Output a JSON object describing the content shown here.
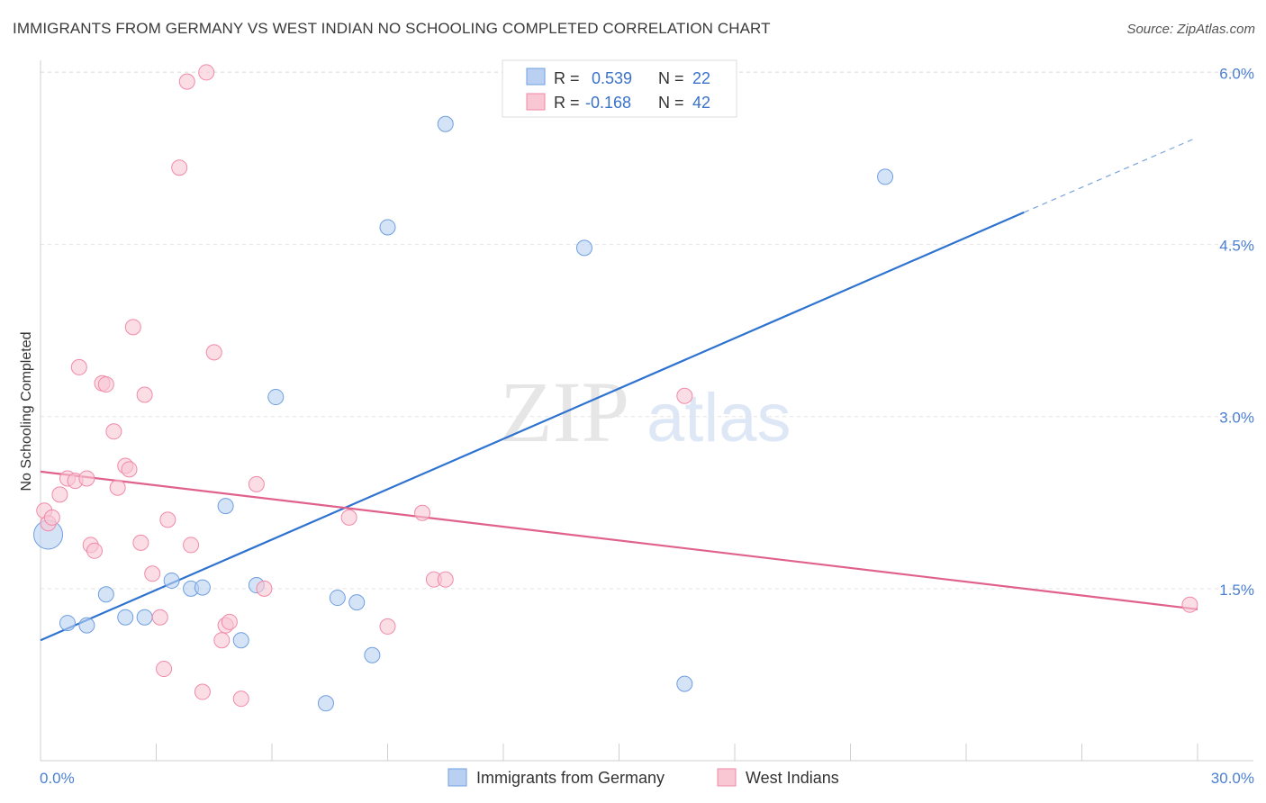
{
  "title": "IMMIGRANTS FROM GERMANY VS WEST INDIAN NO SCHOOLING COMPLETED CORRELATION CHART",
  "source": "Source: ZipAtlas.com",
  "watermark": {
    "zip": "ZIP",
    "atlas": "atlas"
  },
  "legend_top": {
    "rows": [
      {
        "r_label": "R =",
        "r_value": "0.539",
        "n_label": "N =",
        "n_value": "22"
      },
      {
        "r_label": "R =",
        "r_value": "-0.168",
        "n_label": "N =",
        "n_value": "42"
      }
    ]
  },
  "chart_data": {
    "type": "scatter",
    "title": "IMMIGRANTS FROM GERMANY VS WEST INDIAN NO SCHOOLING COMPLETED CORRELATION CHART",
    "xlabel": "",
    "ylabel": "No Schooling Completed",
    "xlim": [
      0,
      30
    ],
    "ylim": [
      0,
      6.3
    ],
    "x_tick_labels": [
      "0.0%",
      "30.0%"
    ],
    "y_ticks": [
      1.5,
      3.0,
      4.5,
      6.0
    ],
    "y_tick_labels": [
      "1.5%",
      "3.0%",
      "4.5%",
      "6.0%"
    ],
    "grid": "horizontal dashed",
    "legend_position": "bottom-center",
    "series": [
      {
        "name": "Immigrants from Germany",
        "color": "#6f9fe0",
        "fill": "#b9d0f2",
        "r": 0.539,
        "n": 22,
        "trend": {
          "x0": 0,
          "y0": 1.05,
          "x1": 25.5,
          "y1": 4.78,
          "dash_x_end": 29.9,
          "dash_y_end": 5.42
        },
        "points": [
          [
            0.2,
            1.97,
            "big"
          ],
          [
            0.7,
            1.2
          ],
          [
            1.2,
            1.18
          ],
          [
            1.7,
            1.45
          ],
          [
            2.2,
            1.25
          ],
          [
            2.7,
            1.25
          ],
          [
            3.4,
            1.57
          ],
          [
            3.9,
            1.5
          ],
          [
            4.2,
            1.51
          ],
          [
            4.8,
            2.22
          ],
          [
            5.2,
            1.05
          ],
          [
            5.6,
            1.53
          ],
          [
            6.1,
            3.17
          ],
          [
            7.4,
            0.5
          ],
          [
            7.7,
            1.42
          ],
          [
            8.2,
            1.38
          ],
          [
            8.6,
            0.92
          ],
          [
            9.0,
            4.65
          ],
          [
            10.5,
            5.55
          ],
          [
            14.1,
            4.47
          ],
          [
            16.7,
            0.67
          ],
          [
            21.9,
            5.09
          ]
        ]
      },
      {
        "name": "West Indians",
        "color": "#f08aa8",
        "fill": "#f9c6d4",
        "r": -0.168,
        "n": 42,
        "trend": {
          "x0": 0,
          "y0": 2.52,
          "x1": 30,
          "y1": 1.32
        },
        "points": [
          [
            0.1,
            2.18
          ],
          [
            0.2,
            2.07
          ],
          [
            0.3,
            2.12
          ],
          [
            0.5,
            2.32
          ],
          [
            0.7,
            2.46
          ],
          [
            0.9,
            2.44
          ],
          [
            1.0,
            3.43
          ],
          [
            1.2,
            2.46
          ],
          [
            1.3,
            1.88
          ],
          [
            1.4,
            1.83
          ],
          [
            1.6,
            3.29
          ],
          [
            1.7,
            3.28
          ],
          [
            1.9,
            2.87
          ],
          [
            2.0,
            2.38
          ],
          [
            2.2,
            2.57
          ],
          [
            2.3,
            2.54
          ],
          [
            2.4,
            3.78
          ],
          [
            2.6,
            1.9
          ],
          [
            2.7,
            3.19
          ],
          [
            2.9,
            1.63
          ],
          [
            3.1,
            1.25
          ],
          [
            3.2,
            0.8
          ],
          [
            3.3,
            2.1
          ],
          [
            3.6,
            5.17
          ],
          [
            3.8,
            5.92
          ],
          [
            3.9,
            1.88
          ],
          [
            4.2,
            0.6
          ],
          [
            4.3,
            6.0
          ],
          [
            4.5,
            3.56
          ],
          [
            4.7,
            1.05
          ],
          [
            4.8,
            1.18
          ],
          [
            4.9,
            1.21
          ],
          [
            5.2,
            0.54
          ],
          [
            5.6,
            2.41
          ],
          [
            5.8,
            1.5
          ],
          [
            8.0,
            2.12
          ],
          [
            9.0,
            1.17
          ],
          [
            9.9,
            2.16
          ],
          [
            10.2,
            1.58
          ],
          [
            10.5,
            1.58
          ],
          [
            16.7,
            3.18
          ],
          [
            29.8,
            1.36
          ]
        ]
      }
    ]
  }
}
